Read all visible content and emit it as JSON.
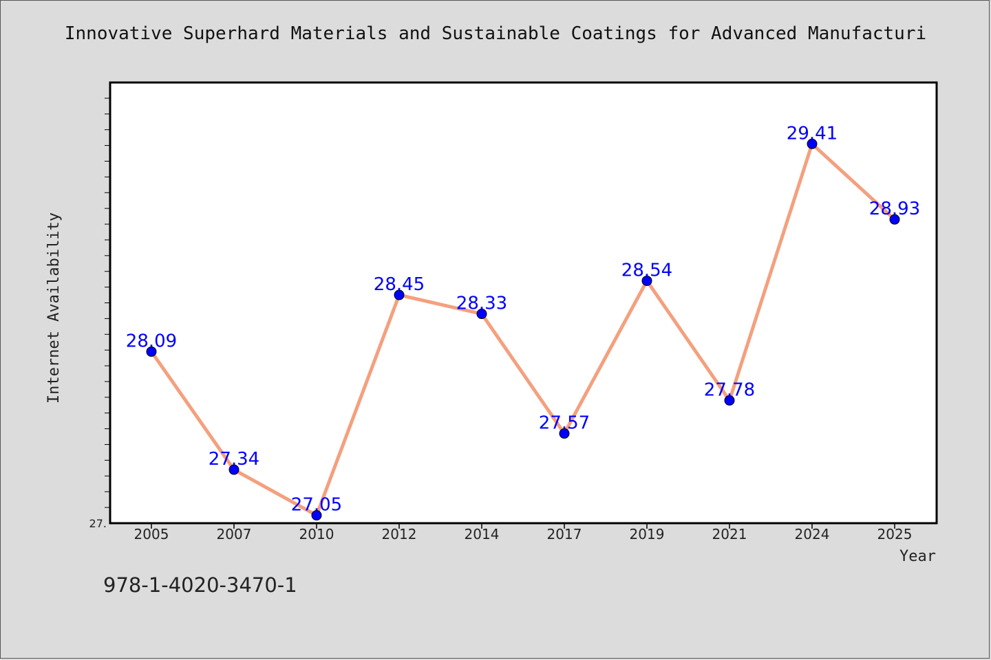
{
  "chart_data": {
    "type": "line",
    "title": "Innovative Superhard Materials and Sustainable Coatings for Advanced Manufacturi",
    "xlabel": "Year",
    "ylabel": "Internet Availability",
    "categories": [
      "2005",
      "2007",
      "2010",
      "2012",
      "2014",
      "2017",
      "2019",
      "2021",
      "2024",
      "2025"
    ],
    "series": [
      {
        "values": [
          28.09,
          27.34,
          27.05,
          28.45,
          28.33,
          27.57,
          28.54,
          27.78,
          29.41,
          28.93
        ]
      }
    ],
    "ylim": [
      27.0,
      29.8
    ],
    "y_tick_labels": [
      "27."
    ],
    "data_labels": [
      "28.09",
      "27.34",
      "27.05",
      "28.45",
      "28.33",
      "27.57",
      "28.54",
      "27.78",
      "29.41",
      "28.93"
    ],
    "grid": false,
    "colors": {
      "line": "#f4a07e",
      "marker": "#0000ff",
      "label": "#0000ff",
      "background": "#dcdcdc",
      "plot_bg": "#ffffff"
    }
  },
  "footer_code": "978-1-4020-3470-1"
}
